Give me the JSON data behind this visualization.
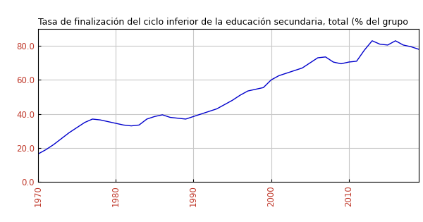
{
  "title": "Tasa de finalización del ciclo inferior de la educación secundaria, total (% del grupo",
  "title_color": "#000000",
  "line_color": "#0000cc",
  "background_color": "#ffffff",
  "grid_color": "#c8c8c8",
  "tick_label_color": "#c0392b",
  "years": [
    1970,
    1971,
    1972,
    1973,
    1974,
    1975,
    1976,
    1977,
    1978,
    1979,
    1980,
    1981,
    1982,
    1983,
    1984,
    1985,
    1986,
    1987,
    1988,
    1989,
    1990,
    1991,
    1992,
    1993,
    1994,
    1995,
    1996,
    1997,
    1998,
    1999,
    2000,
    2001,
    2002,
    2003,
    2004,
    2005,
    2006,
    2007,
    2008,
    2009,
    2010,
    2011,
    2012,
    2013,
    2014,
    2015,
    2016,
    2017,
    2018,
    2019
  ],
  "values": [
    16.5,
    19.0,
    22.0,
    25.5,
    29.0,
    32.0,
    35.0,
    37.0,
    36.5,
    35.5,
    34.5,
    33.5,
    33.0,
    33.5,
    37.0,
    38.5,
    39.5,
    38.0,
    37.5,
    37.0,
    38.5,
    40.0,
    41.5,
    43.0,
    45.5,
    48.0,
    51.0,
    53.5,
    54.5,
    55.5,
    60.0,
    62.5,
    64.0,
    65.5,
    67.0,
    70.0,
    73.0,
    73.5,
    70.5,
    69.5,
    70.5,
    71.0,
    77.5,
    83.0,
    81.0,
    80.5,
    83.0,
    80.5,
    79.5,
    78.0
  ],
  "xlim": [
    1970,
    2019
  ],
  "ylim": [
    0.0,
    90.0
  ],
  "xticks": [
    1970,
    1980,
    1990,
    2000,
    2010
  ],
  "yticks": [
    0.0,
    20.0,
    40.0,
    60.0,
    80.0
  ],
  "figsize": [
    6.0,
    3.15
  ],
  "dpi": 100,
  "title_fontsize": 9.0,
  "tick_fontsize": 8.5
}
